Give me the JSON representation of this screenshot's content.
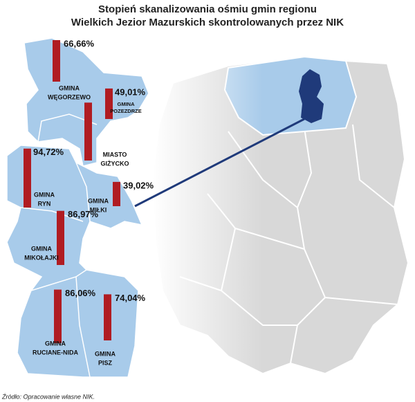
{
  "title": [
    "Stopień skanalizowania ośmiu gmin regionu",
    "Wielkich Jezior Mazurskich skontrolowanych przez NIK"
  ],
  "regions": [
    {
      "label": [
        "GMINA",
        "WĘGORZEWO"
      ],
      "value": 66.66,
      "value_label": "66,66%"
    },
    {
      "label": [
        "GMINA",
        "POZEZDRZE"
      ],
      "value": 49.01,
      "value_label": "49,01%"
    },
    {
      "label": [
        "MIASTO",
        "GIŻYCKO"
      ],
      "value": 93
    },
    {
      "label": [
        "GMINA",
        "RYN"
      ],
      "value": 94.72,
      "value_label": "94,72%"
    },
    {
      "label": [
        "GMINA",
        "MIŁKI"
      ],
      "value": 39.02,
      "value_label": "39,02%"
    },
    {
      "label": [
        "GMINA",
        "MIKOŁAJKI"
      ],
      "value": 86.97,
      "value_label": "86,97%"
    },
    {
      "label": [
        "GMINA",
        "RUCIANE-NIDA"
      ],
      "value": 86.06,
      "value_label": "86,06%"
    },
    {
      "label": [
        "GMINA",
        "PISZ"
      ],
      "value": 74.04,
      "value_label": "74,04%"
    }
  ],
  "source": "Źródło: Opracowanie własne NIK."
}
